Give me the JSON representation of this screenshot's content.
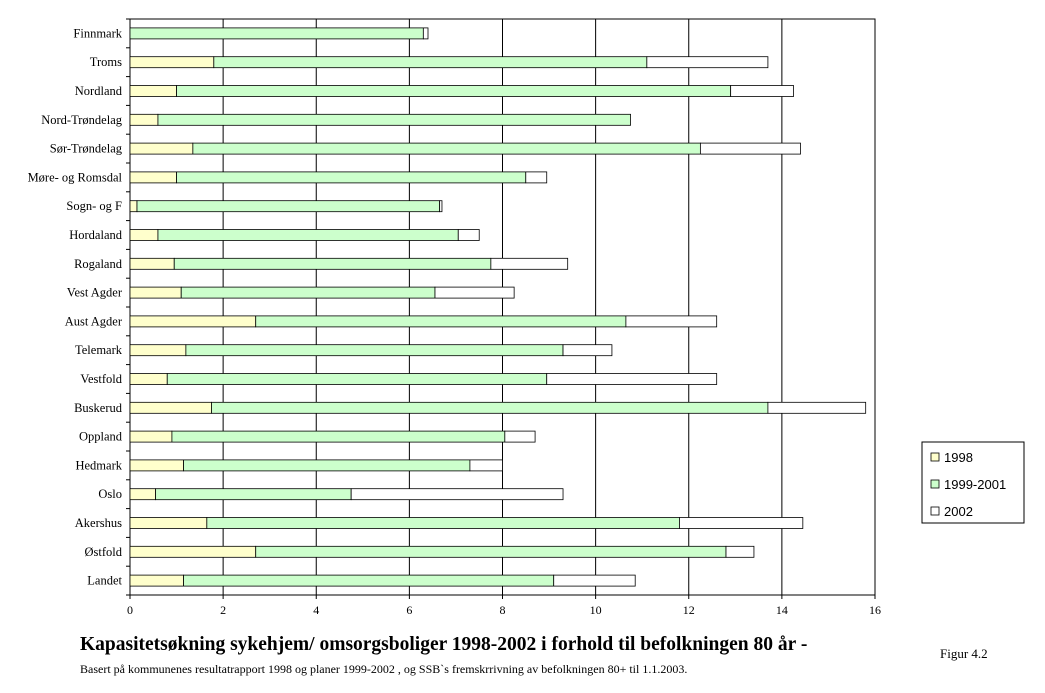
{
  "chart_data": {
    "type": "bar",
    "orientation": "horizontal",
    "stacked": true,
    "title": "Kapasitetsøkning sykehjem/ omsorgsboliger 1998-2002 i forhold til befolkningen 80 år -",
    "subtitle": "Basert på kommunenes resultatrapport 1998 og planer 1999-2002 , og SSB`s fremskrrivning av befolkningen 80+ til 1.1.2003.",
    "figure_label": "Figur 4.2",
    "xlim": [
      0,
      16
    ],
    "xticks": [
      0,
      2,
      4,
      6,
      8,
      10,
      12,
      14,
      16
    ],
    "grid": true,
    "legend_position": "right",
    "categories": [
      "Finnmark",
      "Troms",
      "Nordland",
      "Nord-Trøndelag",
      "Sør-Trøndelag",
      "Møre- og Romsdal",
      "Sogn- og F",
      "Hordaland",
      "Rogaland",
      "Vest Agder",
      "Aust Agder",
      "Telemark",
      "Vestfold",
      "Buskerud",
      "Oppland",
      "Hedmark",
      "Oslo",
      "Akershus",
      "Østfold",
      "Landet"
    ],
    "series": [
      {
        "name": "1998",
        "color": "#ffffcc",
        "values": [
          0.0,
          1.8,
          1.0,
          0.6,
          1.35,
          1.0,
          0.15,
          0.6,
          0.95,
          1.1,
          2.7,
          1.2,
          0.8,
          1.75,
          0.9,
          1.15,
          0.55,
          1.65,
          2.7,
          1.15
        ]
      },
      {
        "name": "1999-2001",
        "color": "#ccffcc",
        "values": [
          6.3,
          9.3,
          11.9,
          10.15,
          10.9,
          7.5,
          6.5,
          6.45,
          6.8,
          5.45,
          7.95,
          8.1,
          8.15,
          11.95,
          7.15,
          6.15,
          4.2,
          10.15,
          10.1,
          7.95
        ]
      },
      {
        "name": "2002",
        "color": "#ffffff",
        "values": [
          0.1,
          2.6,
          1.35,
          0.0,
          2.15,
          0.45,
          0.05,
          0.45,
          1.65,
          1.7,
          1.95,
          1.05,
          3.65,
          2.1,
          0.65,
          0.7,
          4.55,
          2.65,
          0.6,
          1.75
        ]
      }
    ]
  }
}
